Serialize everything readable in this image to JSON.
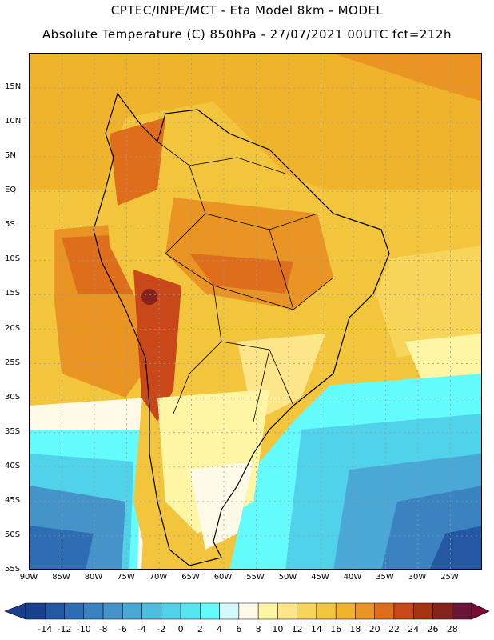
{
  "header": {
    "line1": "CPTEC/INPE/MCT -  Eta Model 8km - MODEL",
    "line2": "Absolute Temperature (C) 850hPa - 27/07/2021 00UTC fct=212h"
  },
  "map": {
    "region": "South America",
    "variable": "Absolute Temperature (C) 850hPa",
    "lat_range": [
      -55,
      20
    ],
    "lon_range": [
      -90,
      -20
    ],
    "lat_labels": [
      "15N",
      "10N",
      "5N",
      "EQ",
      "5S",
      "10S",
      "15S",
      "20S",
      "25S",
      "30S",
      "35S",
      "40S",
      "45S",
      "50S",
      "55S"
    ],
    "lat_values": [
      15,
      10,
      5,
      0,
      -5,
      -10,
      -15,
      -20,
      -25,
      -30,
      -35,
      -40,
      -45,
      -50,
      -55
    ],
    "lon_labels": [
      "90W",
      "85W",
      "80W",
      "75W",
      "70W",
      "65W",
      "60W",
      "55W",
      "50W",
      "45W",
      "40W",
      "35W",
      "30W",
      "25W"
    ],
    "lon_values": [
      -90,
      -85,
      -80,
      -75,
      -70,
      -65,
      -60,
      -55,
      -50,
      -45,
      -40,
      -35,
      -30,
      -25
    ]
  },
  "colorbar": {
    "labels": [
      "-14",
      "-12",
      "-10",
      "-8",
      "-6",
      "-4",
      "-2",
      "0",
      "2",
      "4",
      "6",
      "8",
      "10",
      "12",
      "14",
      "16",
      "18",
      "20",
      "22",
      "24",
      "26",
      "28"
    ],
    "colors": [
      "#1b3f8f",
      "#2558a3",
      "#2e6db3",
      "#3a82c0",
      "#4594c9",
      "#4aa8d6",
      "#4dbde0",
      "#50d2ea",
      "#55e6f2",
      "#63fbfb",
      "#d4f8fb",
      "#fff9e8",
      "#fff6a5",
      "#fde68a",
      "#f7d55a",
      "#f2c53c",
      "#f0b32c",
      "#ea9424",
      "#df6e1c",
      "#c9481a",
      "#a63214",
      "#86221c",
      "#6a1438"
    ],
    "min_arrow_color": "#1b3f8f",
    "max_arrow_color": "#7a0a32"
  }
}
